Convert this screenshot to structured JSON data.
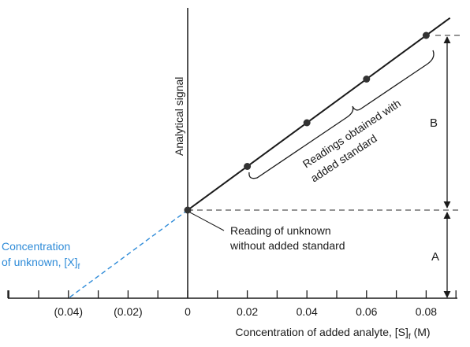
{
  "chart_data": {
    "type": "scatter",
    "title": "",
    "ylabel": "Analytical signal",
    "xlabel": "Concentration of added analyte, [S]",
    "xlabel_sub": "f",
    "xlabel_unit": " (M)",
    "xlim": [
      -0.06,
      0.09
    ],
    "tick_labels": [
      {
        "x": -0.04,
        "label": "(0.04)"
      },
      {
        "x": -0.02,
        "label": "(0.02)"
      },
      {
        "x": 0,
        "label": "0"
      },
      {
        "x": 0.02,
        "label": "0.02"
      },
      {
        "x": 0.04,
        "label": "0.04"
      },
      {
        "x": 0.06,
        "label": "0.06"
      },
      {
        "x": 0.08,
        "label": "0.08"
      }
    ],
    "minor_ticks": [
      -0.06,
      -0.05,
      -0.04,
      -0.03,
      -0.02,
      -0.01,
      0,
      0.01,
      0.02,
      0.03,
      0.04,
      0.05,
      0.06,
      0.07,
      0.08,
      0.09
    ],
    "intercept": {
      "x": 0,
      "y": 1.0
    },
    "x_intercept": -0.04,
    "points": [
      {
        "x": 0,
        "y": 1.0
      },
      {
        "x": 0.02,
        "y": 1.5
      },
      {
        "x": 0.04,
        "y": 2.0
      },
      {
        "x": 0.06,
        "y": 2.5
      },
      {
        "x": 0.08,
        "y": 3.0
      }
    ],
    "annotations": {
      "unknown_reading": [
        "Reading of unknown",
        "without added standard"
      ],
      "with_standard": [
        "Readings obtained with",
        "added standard"
      ],
      "concentration_unknown_line1": "Concentration",
      "concentration_unknown_line2": "of unknown, [X]",
      "concentration_unknown_sub": "f",
      "segment_a": "A",
      "segment_b": "B"
    },
    "colors": {
      "line": "#1a1a1a",
      "axis": "#1a1a1a",
      "extrapolation": "#2e8bd8",
      "dashed": "#555555",
      "points": "#333333"
    }
  }
}
